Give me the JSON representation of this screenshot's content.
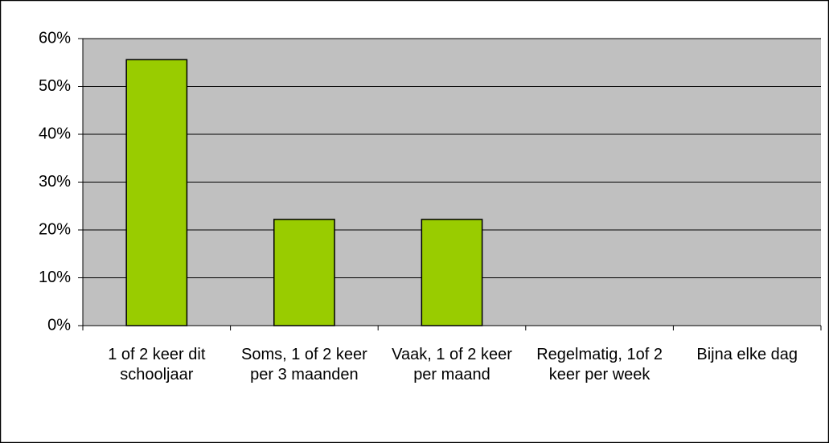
{
  "chart_data": {
    "type": "bar",
    "categories": [
      "1 of 2 keer dit schooljaar",
      "Soms, 1 of 2 keer per 3 maanden",
      "Vaak, 1 of 2 keer per maand",
      "Regelmatig, 1of 2 keer per week",
      "Bijna elke dag"
    ],
    "values": [
      55.6,
      22.2,
      22.2,
      0,
      0
    ],
    "color": "#99cc00",
    "ylim": [
      0,
      60
    ],
    "yticks": [
      {
        "value": 0,
        "label": "0%"
      },
      {
        "value": 10,
        "label": "10%"
      },
      {
        "value": 20,
        "label": "20%"
      },
      {
        "value": 30,
        "label": "30%"
      },
      {
        "value": 40,
        "label": "40%"
      },
      {
        "value": 50,
        "label": "50%"
      },
      {
        "value": 60,
        "label": "60%"
      }
    ],
    "grid": true
  }
}
